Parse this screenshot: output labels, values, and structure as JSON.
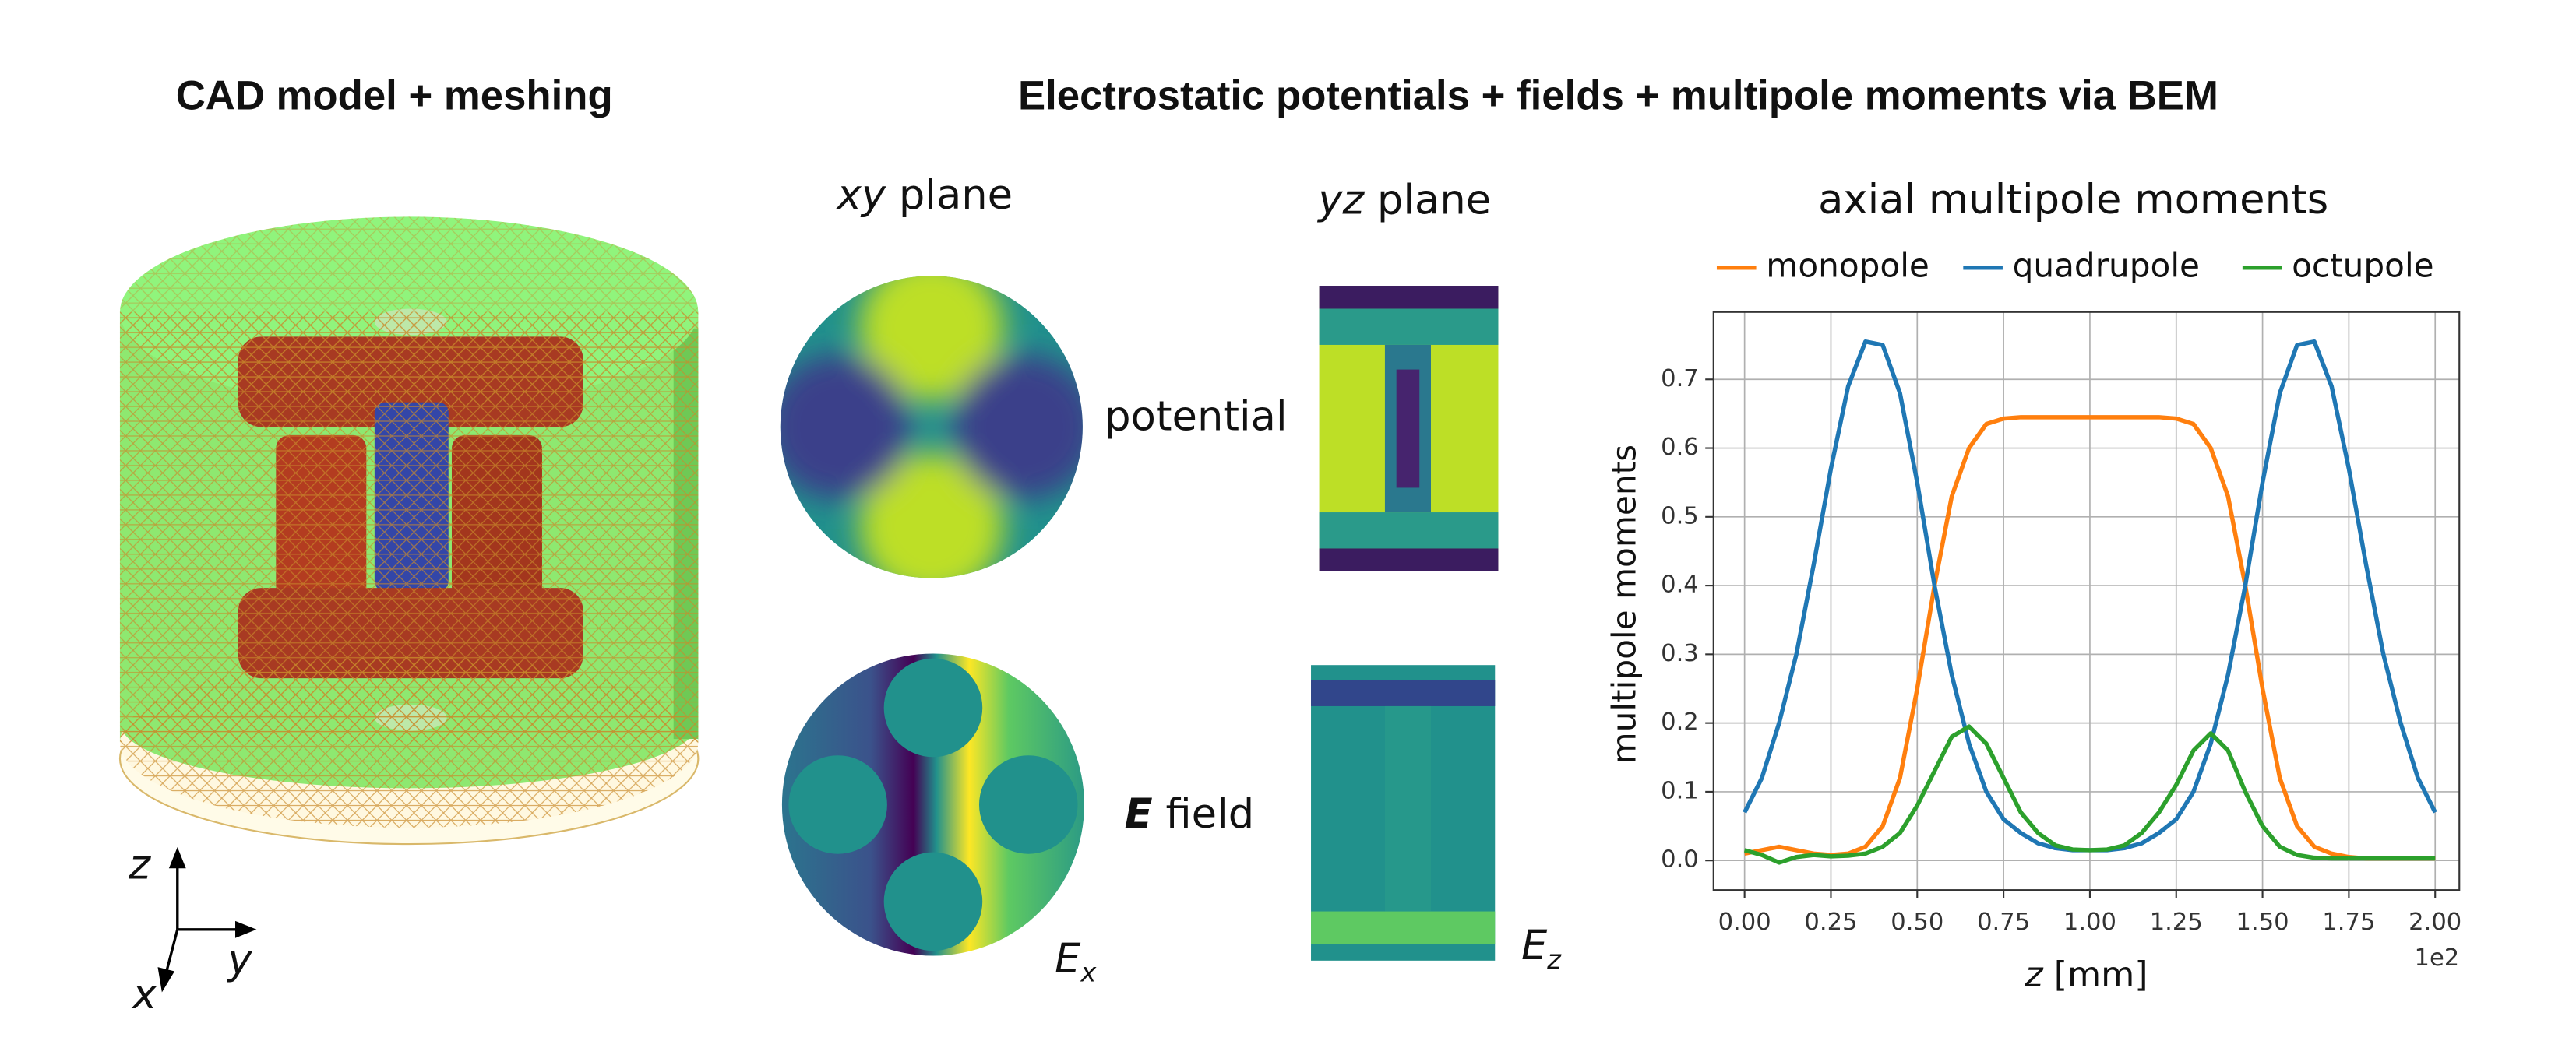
{
  "figure": {
    "left_title": "CAD model + meshing",
    "right_title": "Electrostatic potentials + fields + multipole moments via BEM",
    "xy_plane": {
      "var": "xy",
      "word": "plane"
    },
    "yz_plane": {
      "var": "yz",
      "word": "plane"
    },
    "potential_label": "potential",
    "field_label": {
      "var": "E",
      "word": "field"
    },
    "ex_label": {
      "var": "E",
      "sub": "x"
    },
    "ez_label": {
      "var": "E",
      "sub": "z"
    },
    "axis_z": "z",
    "axis_y": "y",
    "axis_x": "x"
  },
  "chart_data": {
    "type": "line",
    "title": "axial multipole moments",
    "y_label": "multipole moments",
    "x_label": {
      "var": "z",
      "unit": "[mm]"
    },
    "x_offset_label": "1e2",
    "legend": "top",
    "grid": true,
    "xlim": [
      -0.09,
      2.07
    ],
    "ylim": [
      -0.043,
      0.798
    ],
    "xticks": [
      {
        "value": 0,
        "label": "0.00"
      },
      {
        "value": 0.25,
        "label": "0.25"
      },
      {
        "value": 0.5,
        "label": "0.50"
      },
      {
        "value": 0.75,
        "label": "0.75"
      },
      {
        "value": 1,
        "label": "1.00"
      },
      {
        "value": 1.25,
        "label": "1.25"
      },
      {
        "value": 1.5,
        "label": "1.50"
      },
      {
        "value": 1.75,
        "label": "1.75"
      },
      {
        "value": 2,
        "label": "2.00"
      }
    ],
    "yticks": [
      {
        "value": 0,
        "label": "0.0"
      },
      0.1,
      0.2,
      0.3,
      0.4,
      0.5,
      0.6,
      0.7
    ],
    "x": [
      0,
      0.05,
      0.1,
      0.15,
      0.2,
      0.25,
      0.3,
      0.35,
      0.4,
      0.45,
      0.5,
      0.55,
      0.6,
      0.65,
      0.7,
      0.75,
      0.8,
      0.85,
      0.9,
      0.95,
      1,
      1.05,
      1.1,
      1.15,
      1.2,
      1.25,
      1.3,
      1.35,
      1.4,
      1.45,
      1.5,
      1.55,
      1.6,
      1.65,
      1.7,
      1.75,
      1.8,
      1.85,
      1.9,
      1.95,
      2
    ],
    "series": [
      {
        "name": "monopole",
        "color": "#ff7f0e",
        "values": [
          0.01,
          0.015,
          0.02,
          0.015,
          0.01,
          0.008,
          0.01,
          0.02,
          0.05,
          0.12,
          0.25,
          0.4,
          0.53,
          0.6,
          0.635,
          0.643,
          0.645,
          0.645,
          0.645,
          0.645,
          0.645,
          0.645,
          0.645,
          0.645,
          0.645,
          0.643,
          0.635,
          0.6,
          0.53,
          0.4,
          0.25,
          0.12,
          0.05,
          0.02,
          0.01,
          0.005,
          0.003,
          0.003,
          0.003,
          0.003,
          0.003
        ]
      },
      {
        "name": "quadrupole",
        "color": "#1f77b4",
        "values": [
          0.07,
          0.12,
          0.2,
          0.3,
          0.43,
          0.57,
          0.69,
          0.755,
          0.75,
          0.68,
          0.55,
          0.4,
          0.27,
          0.17,
          0.1,
          0.06,
          0.04,
          0.025,
          0.018,
          0.015,
          0.015,
          0.015,
          0.018,
          0.025,
          0.04,
          0.06,
          0.1,
          0.17,
          0.27,
          0.4,
          0.55,
          0.68,
          0.75,
          0.755,
          0.69,
          0.57,
          0.43,
          0.3,
          0.2,
          0.12,
          0.07
        ]
      },
      {
        "name": "octupole",
        "color": "#2ca02c",
        "values": [
          0.015,
          0.008,
          -0.003,
          0.005,
          0.008,
          0.006,
          0.007,
          0.01,
          0.02,
          0.04,
          0.08,
          0.13,
          0.18,
          0.195,
          0.17,
          0.12,
          0.07,
          0.04,
          0.022,
          0.016,
          0.015,
          0.016,
          0.022,
          0.04,
          0.07,
          0.11,
          0.16,
          0.185,
          0.16,
          0.1,
          0.05,
          0.02,
          0.008,
          0.004,
          0.003,
          0.003,
          0.003,
          0.003,
          0.003,
          0.003,
          0.003
        ]
      }
    ]
  }
}
